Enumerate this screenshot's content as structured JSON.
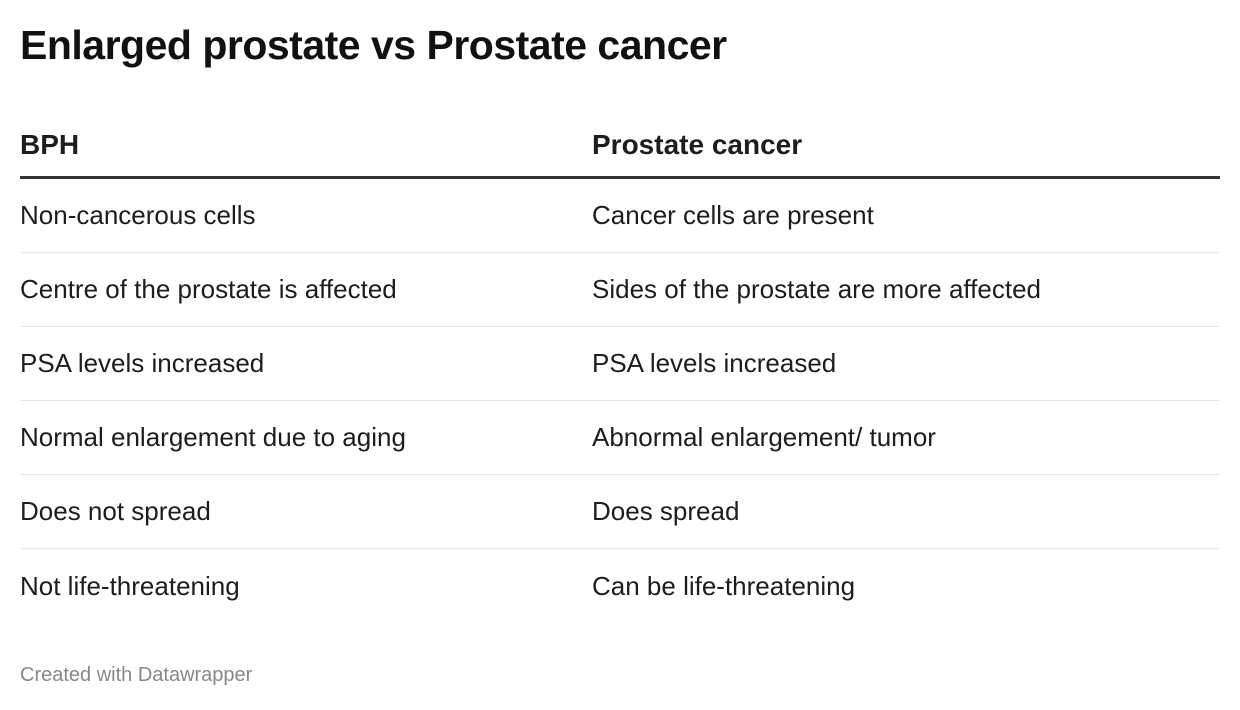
{
  "title": "Enlarged prostate vs Prostate cancer",
  "table": {
    "headers": [
      "BPH",
      "Prostate cancer"
    ],
    "rows": [
      [
        "Non-cancerous cells",
        "Cancer cells are present"
      ],
      [
        "Centre of the prostate is affected",
        "Sides of the prostate are more affected"
      ],
      [
        "PSA levels increased",
        "PSA levels increased"
      ],
      [
        "Normal enlargement due to aging",
        "Abnormal enlargement/ tumor"
      ],
      [
        "Does not spread",
        "Does spread"
      ],
      [
        "Not life-threatening",
        "Can be life-threatening"
      ]
    ]
  },
  "footer": "Created with Datawrapper",
  "colors": {
    "text": "#1d1d1d",
    "header_rule": "#333333",
    "row_rule": "#e6e6e6",
    "footer_text": "#888888"
  }
}
